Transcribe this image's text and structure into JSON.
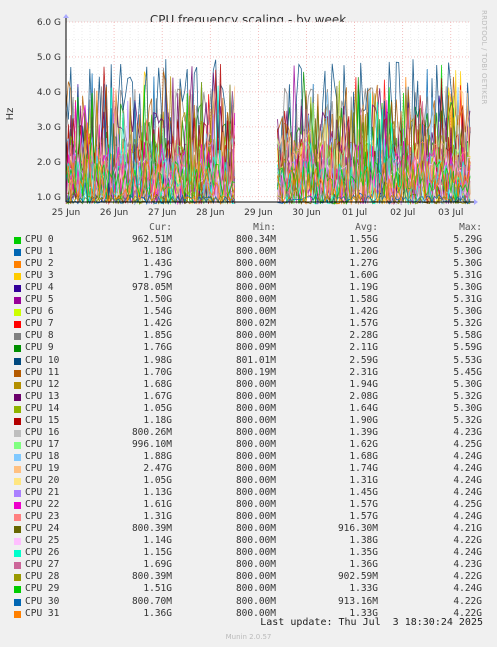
{
  "page": {
    "watermark": "RRDTOOL / TOBI OETIKER",
    "last_update": "Last update: Thu Jul  3 18:30:24 2025",
    "footer": "Munin 2.0.57"
  },
  "legend_headers": {
    "cur": "Cur:",
    "min": "Min:",
    "avg": "Avg:",
    "max": "Max:"
  },
  "chart_data": {
    "type": "line",
    "title": "CPU frequency scaling - by week",
    "ylabel": "Hz",
    "ylim": [
      0.85,
      6.0
    ],
    "yticks": [
      {
        "value": 1.0,
        "label": "1.0 G"
      },
      {
        "value": 2.0,
        "label": "2.0 G"
      },
      {
        "value": 3.0,
        "label": "3.0 G"
      },
      {
        "value": 4.0,
        "label": "4.0 G"
      },
      {
        "value": 5.0,
        "label": "5.0 G"
      },
      {
        "value": 6.0,
        "label": "6.0 G"
      }
    ],
    "xlim": [
      0,
      8.4
    ],
    "xticks": [
      {
        "value": 0,
        "label": "25 Jun"
      },
      {
        "value": 1,
        "label": "26 Jun"
      },
      {
        "value": 2,
        "label": "27 Jun"
      },
      {
        "value": 3,
        "label": "28 Jun"
      },
      {
        "value": 4,
        "label": "29 Jun"
      },
      {
        "value": 5,
        "label": "30 Jun"
      },
      {
        "value": 6,
        "label": "01 Jul"
      },
      {
        "value": 7,
        "label": "02 Jul"
      },
      {
        "value": 8,
        "label": "03 Jul"
      }
    ],
    "gap": [
      3.55,
      4.35
    ],
    "grid": true,
    "series": [
      {
        "name": "CPU 0",
        "color": "#00cc00",
        "cur": "962.51M",
        "min": "800.34M",
        "avg": "1.55G",
        "max": "5.29G"
      },
      {
        "name": "CPU 1",
        "color": "#0066b3",
        "cur": "1.18G",
        "min": "800.00M",
        "avg": "1.20G",
        "max": "5.30G"
      },
      {
        "name": "CPU 2",
        "color": "#ff8000",
        "cur": "1.43G",
        "min": "800.00M",
        "avg": "1.27G",
        "max": "5.30G"
      },
      {
        "name": "CPU 3",
        "color": "#ffcc00",
        "cur": "1.79G",
        "min": "800.00M",
        "avg": "1.60G",
        "max": "5.31G"
      },
      {
        "name": "CPU 4",
        "color": "#330099",
        "cur": "978.05M",
        "min": "800.00M",
        "avg": "1.19G",
        "max": "5.30G"
      },
      {
        "name": "CPU 5",
        "color": "#990099",
        "cur": "1.50G",
        "min": "800.00M",
        "avg": "1.58G",
        "max": "5.31G"
      },
      {
        "name": "CPU 6",
        "color": "#ccff00",
        "cur": "1.54G",
        "min": "800.00M",
        "avg": "1.42G",
        "max": "5.30G"
      },
      {
        "name": "CPU 7",
        "color": "#ff0000",
        "cur": "1.42G",
        "min": "800.02M",
        "avg": "1.57G",
        "max": "5.32G"
      },
      {
        "name": "CPU 8",
        "color": "#808080",
        "cur": "1.85G",
        "min": "800.00M",
        "avg": "2.28G",
        "max": "5.58G"
      },
      {
        "name": "CPU 9",
        "color": "#008f00",
        "cur": "1.76G",
        "min": "800.09M",
        "avg": "2.11G",
        "max": "5.59G"
      },
      {
        "name": "CPU 10",
        "color": "#00487d",
        "cur": "1.98G",
        "min": "801.01M",
        "avg": "2.59G",
        "max": "5.53G"
      },
      {
        "name": "CPU 11",
        "color": "#b35a00",
        "cur": "1.70G",
        "min": "800.19M",
        "avg": "2.31G",
        "max": "5.45G"
      },
      {
        "name": "CPU 12",
        "color": "#b38f00",
        "cur": "1.68G",
        "min": "800.00M",
        "avg": "1.94G",
        "max": "5.30G"
      },
      {
        "name": "CPU 13",
        "color": "#6b006b",
        "cur": "1.67G",
        "min": "800.00M",
        "avg": "2.08G",
        "max": "5.32G"
      },
      {
        "name": "CPU 14",
        "color": "#8fb300",
        "cur": "1.05G",
        "min": "800.00M",
        "avg": "1.64G",
        "max": "5.30G"
      },
      {
        "name": "CPU 15",
        "color": "#b30000",
        "cur": "1.18G",
        "min": "800.00M",
        "avg": "1.90G",
        "max": "5.32G"
      },
      {
        "name": "CPU 16",
        "color": "#bebebe",
        "cur": "800.26M",
        "min": "800.00M",
        "avg": "1.39G",
        "max": "4.23G"
      },
      {
        "name": "CPU 17",
        "color": "#80ff80",
        "cur": "996.10M",
        "min": "800.00M",
        "avg": "1.62G",
        "max": "4.25G"
      },
      {
        "name": "CPU 18",
        "color": "#80c9ff",
        "cur": "1.88G",
        "min": "800.00M",
        "avg": "1.68G",
        "max": "4.24G"
      },
      {
        "name": "CPU 19",
        "color": "#ffc080",
        "cur": "2.47G",
        "min": "800.00M",
        "avg": "1.74G",
        "max": "4.24G"
      },
      {
        "name": "CPU 20",
        "color": "#ffe680",
        "cur": "1.05G",
        "min": "800.00M",
        "avg": "1.31G",
        "max": "4.24G"
      },
      {
        "name": "CPU 21",
        "color": "#aa80ff",
        "cur": "1.13G",
        "min": "800.00M",
        "avg": "1.45G",
        "max": "4.24G"
      },
      {
        "name": "CPU 22",
        "color": "#ee00cc",
        "cur": "1.61G",
        "min": "800.00M",
        "avg": "1.57G",
        "max": "4.25G"
      },
      {
        "name": "CPU 23",
        "color": "#ff8080",
        "cur": "1.31G",
        "min": "800.00M",
        "avg": "1.57G",
        "max": "4.24G"
      },
      {
        "name": "CPU 24",
        "color": "#666600",
        "cur": "800.39M",
        "min": "800.00M",
        "avg": "916.30M",
        "max": "4.21G"
      },
      {
        "name": "CPU 25",
        "color": "#ffbfff",
        "cur": "1.14G",
        "min": "800.00M",
        "avg": "1.38G",
        "max": "4.22G"
      },
      {
        "name": "CPU 26",
        "color": "#00ffcc",
        "cur": "1.15G",
        "min": "800.00M",
        "avg": "1.35G",
        "max": "4.24G"
      },
      {
        "name": "CPU 27",
        "color": "#cc6699",
        "cur": "1.69G",
        "min": "800.00M",
        "avg": "1.36G",
        "max": "4.23G"
      },
      {
        "name": "CPU 28",
        "color": "#999900",
        "cur": "800.39M",
        "min": "800.00M",
        "avg": "902.59M",
        "max": "4.22G"
      },
      {
        "name": "CPU 29",
        "color": "#00cc00",
        "cur": "1.51G",
        "min": "800.00M",
        "avg": "1.33G",
        "max": "4.24G"
      },
      {
        "name": "CPU 30",
        "color": "#0066b3",
        "cur": "800.70M",
        "min": "800.00M",
        "avg": "913.16M",
        "max": "4.22G"
      },
      {
        "name": "CPU 31",
        "color": "#ff8000",
        "cur": "1.36G",
        "min": "800.00M",
        "avg": "1.33G",
        "max": "4.22G"
      }
    ]
  }
}
